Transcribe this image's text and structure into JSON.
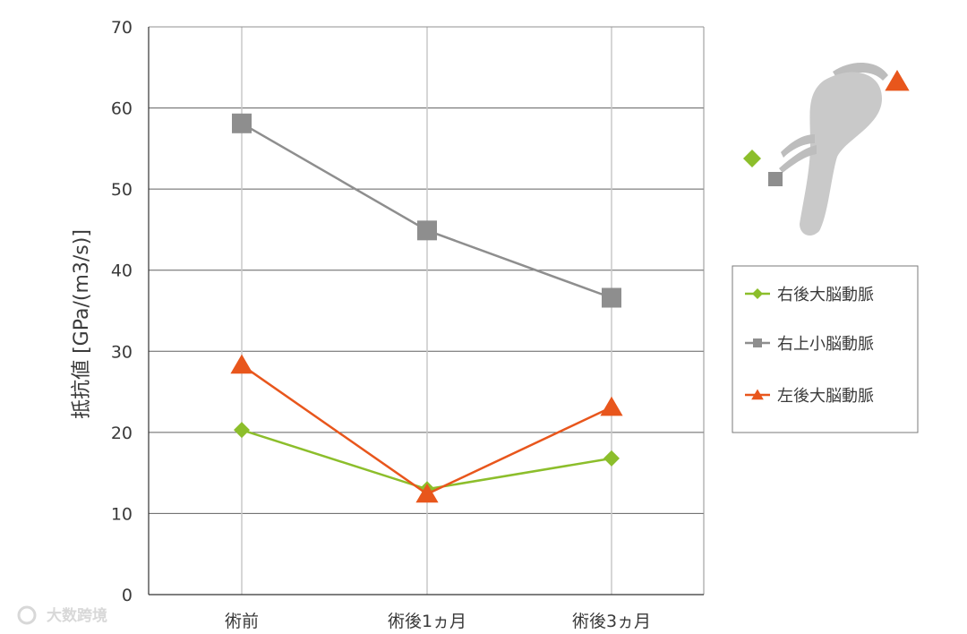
{
  "chart_data": {
    "type": "line",
    "title": "",
    "xlabel": "",
    "ylabel": "抵抗値 [GPa/(m3/s)]",
    "ylim": [
      0,
      70
    ],
    "yticks": [
      0,
      10,
      20,
      30,
      40,
      50,
      60,
      70
    ],
    "categories": [
      "術前",
      "術後1ヵ月",
      "術後3ヵ月"
    ],
    "grid": true,
    "legend_position": "right",
    "series": [
      {
        "name": "右後大脳動脈",
        "marker": "diamond",
        "color": "#8cbe2b",
        "values": [
          20.3,
          13.0,
          16.8
        ]
      },
      {
        "name": "右上小脳動脈",
        "marker": "square",
        "color": "#8e8e8e",
        "values": [
          58.1,
          44.9,
          36.6
        ]
      },
      {
        "name": "左後大脳動脈",
        "marker": "triangle",
        "color": "#e8561c",
        "values": [
          28.3,
          12.4,
          23.1
        ]
      }
    ]
  },
  "watermark": "大数跨境",
  "colors": {
    "grid": "#606060",
    "frame": "#909090",
    "vessel": "#c8c8c8"
  }
}
